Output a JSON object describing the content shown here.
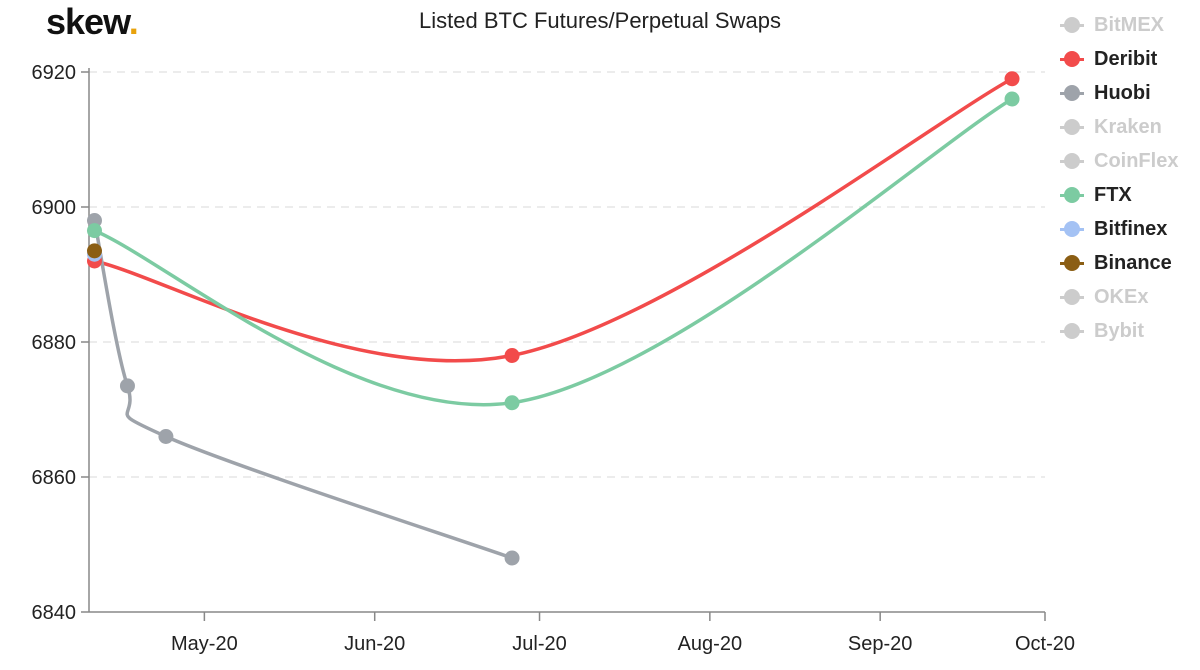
{
  "logo": {
    "text": "skew",
    "dot": "."
  },
  "chart_data": {
    "type": "line",
    "title": "Listed BTC Futures/Perpetual Swaps",
    "xlabel": "",
    "ylabel": "",
    "ylim": [
      6840,
      6920
    ],
    "yticks": [
      6840,
      6860,
      6880,
      6900,
      6920
    ],
    "xlim": [
      "2020-04-10",
      "2020-10-01"
    ],
    "xticks": [
      {
        "date": "2020-05-01",
        "label": "May-20"
      },
      {
        "date": "2020-06-01",
        "label": "Jun-20"
      },
      {
        "date": "2020-07-01",
        "label": "Jul-20"
      },
      {
        "date": "2020-08-01",
        "label": "Aug-20"
      },
      {
        "date": "2020-09-01",
        "label": "Sep-20"
      },
      {
        "date": "2020-10-01",
        "label": "Oct-20"
      }
    ],
    "grid": "horizontal-dashed",
    "legend_position": "right",
    "series": [
      {
        "name": "BitMEX",
        "color": "#cccccc",
        "visible": false,
        "points": []
      },
      {
        "name": "Deribit",
        "color": "#f24b4b",
        "visible": true,
        "points": [
          {
            "x": "2020-04-11",
            "y": 6892
          },
          {
            "x": "2020-06-26",
            "y": 6878
          },
          {
            "x": "2020-09-25",
            "y": 6919
          }
        ]
      },
      {
        "name": "Huobi",
        "color": "#9ea3aa",
        "visible": true,
        "points": [
          {
            "x": "2020-04-11",
            "y": 6898
          },
          {
            "x": "2020-04-17",
            "y": 6873.5
          },
          {
            "x": "2020-04-24",
            "y": 6866
          },
          {
            "x": "2020-06-26",
            "y": 6848
          }
        ]
      },
      {
        "name": "Kraken",
        "color": "#cccccc",
        "visible": false,
        "points": []
      },
      {
        "name": "CoinFlex",
        "color": "#cccccc",
        "visible": false,
        "points": []
      },
      {
        "name": "FTX",
        "color": "#7ccba2",
        "visible": true,
        "points": [
          {
            "x": "2020-04-11",
            "y": 6896.5
          },
          {
            "x": "2020-06-26",
            "y": 6871
          },
          {
            "x": "2020-09-25",
            "y": 6916
          }
        ]
      },
      {
        "name": "Bitfinex",
        "color": "#a4c2f4",
        "visible": true,
        "points": [
          {
            "x": "2020-04-11",
            "y": 6893
          }
        ]
      },
      {
        "name": "Binance",
        "color": "#8b5e14",
        "visible": true,
        "points": [
          {
            "x": "2020-04-11",
            "y": 6893.5
          }
        ]
      },
      {
        "name": "OKEx",
        "color": "#cccccc",
        "visible": false,
        "points": []
      },
      {
        "name": "Bybit",
        "color": "#cccccc",
        "visible": false,
        "points": []
      }
    ]
  }
}
